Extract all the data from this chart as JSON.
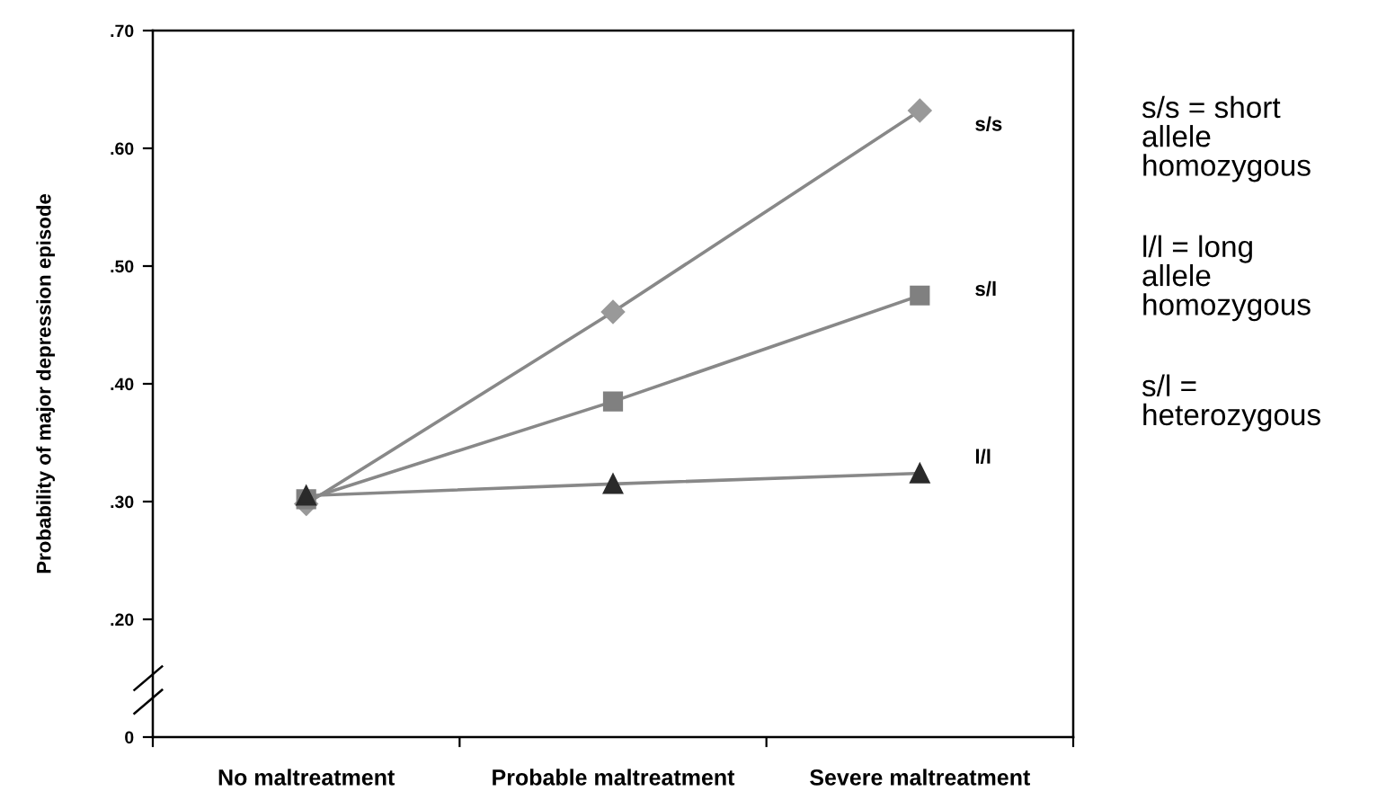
{
  "chart_data": {
    "type": "line",
    "ylabel": "Probability of major depression episode",
    "categories": [
      "No maltreatment",
      "Probable maltreatment",
      "Severe maltreatment"
    ],
    "series": [
      {
        "name": "s/s",
        "color": "#999999",
        "marker": "diamond",
        "values": [
          0.298,
          0.461,
          0.632
        ]
      },
      {
        "name": "s/l",
        "color": "#808080",
        "marker": "square",
        "values": [
          0.302,
          0.385,
          0.475
        ]
      },
      {
        "name": "l/l",
        "color": "#2a2a2a",
        "marker": "triangle",
        "values": [
          0.305,
          0.315,
          0.324
        ]
      }
    ],
    "ylim": [
      0.1,
      0.7
    ],
    "yticks": [
      {
        "value": 0.1,
        "label": "0"
      },
      {
        "value": 0.2,
        "label": ".20"
      },
      {
        "value": 0.3,
        "label": ".30"
      },
      {
        "value": 0.4,
        "label": ".40"
      },
      {
        "value": 0.5,
        "label": ".50"
      },
      {
        "value": 0.6,
        "label": ".60"
      },
      {
        "value": 0.7,
        "label": ".70"
      }
    ],
    "grid": false,
    "legend": false,
    "annotations": [
      "s/s = short\nallele\nhomozygous",
      "l/l = long\nallele\nhomozygous",
      "s/l =\nheterozygous"
    ]
  }
}
